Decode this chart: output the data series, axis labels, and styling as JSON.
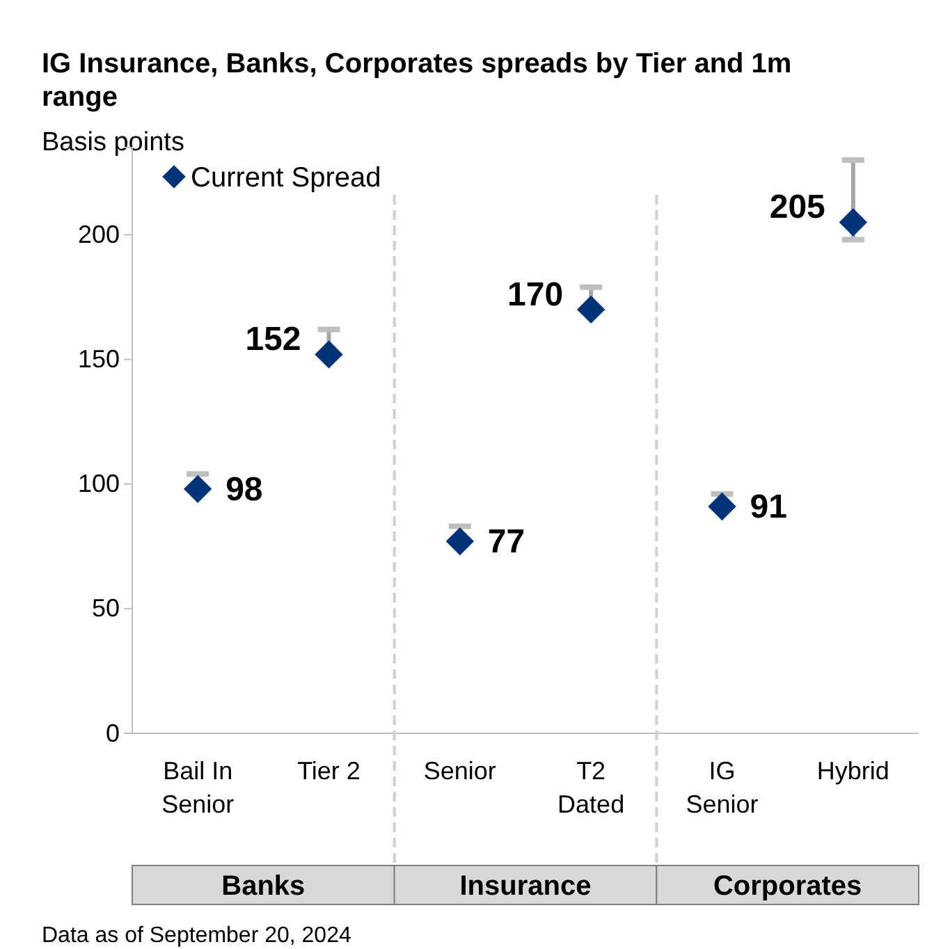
{
  "chart_data": {
    "type": "scatter",
    "title": "IG Insurance, Banks, Corporates spreads by Tier and 1m range",
    "ylabel": "Basis points",
    "categories": [
      "Bail In Senior",
      "Tier 2",
      "Senior",
      "T2 Dated",
      "IG Senior",
      "Hybrid"
    ],
    "series": [
      {
        "name": "Current Spread",
        "color": "#003478",
        "values": [
          98,
          152,
          77,
          170,
          91,
          205
        ],
        "errors": [
          [
            98,
            104
          ],
          [
            152,
            162
          ],
          [
            77,
            83
          ],
          [
            170,
            179
          ],
          [
            91,
            96
          ],
          [
            198,
            230
          ]
        ]
      }
    ],
    "annotations": [
      "Banks",
      "Insurance",
      "Corporates",
      "Data as of September 20, 2024"
    ],
    "ylim": [
      0,
      235
    ],
    "yticks": [
      0,
      50,
      100,
      150,
      200
    ],
    "grid": false,
    "legend": "top left",
    "marker": "diamond",
    "data_labels": true
  }
}
